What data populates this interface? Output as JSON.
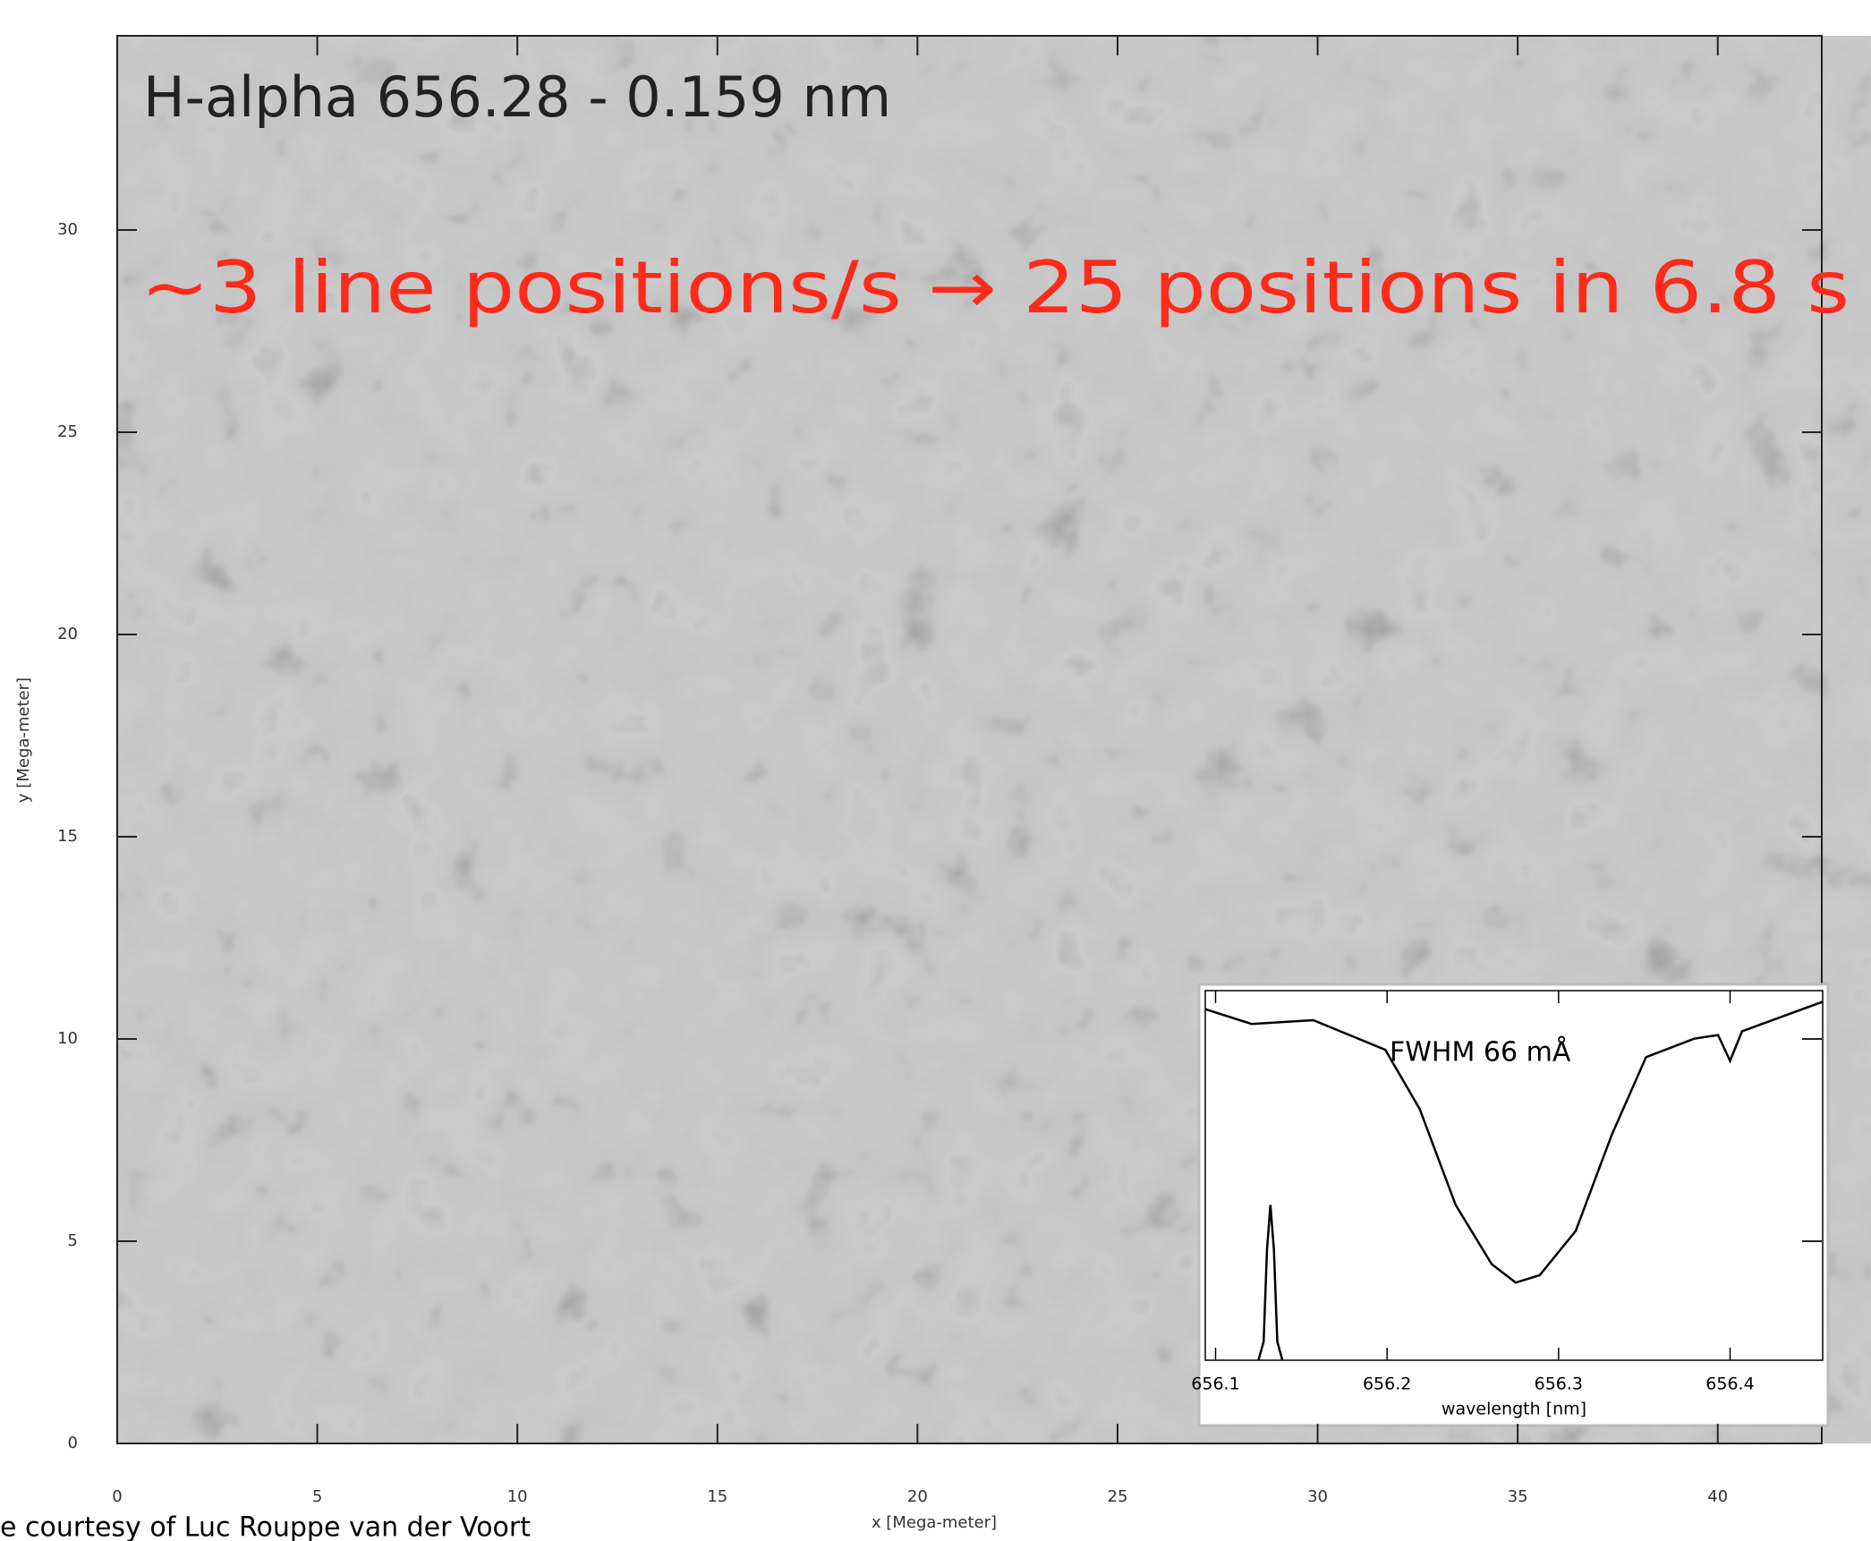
{
  "chart_data": [
    {
      "type": "image",
      "title": "H-alpha 656.28 - 0.159 nm",
      "annotation": "~3 line positions/s → 25 positions in 6.8 s",
      "x_label": "x [Mega-meter]",
      "y_label": "y [Mega-meter]",
      "xlim": [
        0,
        42.6
      ],
      "xticks": [
        0,
        5,
        10,
        15,
        20,
        25,
        30,
        35,
        40
      ],
      "ylim": [
        0,
        34.8
      ],
      "yticks": [
        0,
        5,
        10,
        15,
        20,
        25,
        30
      ]
    },
    {
      "type": "line",
      "annotation": "FWHM 66 mÅ",
      "x_label": "wavelength [nm]",
      "xlim": [
        656.094,
        656.454
      ],
      "xticks": [
        656.1,
        656.2,
        656.3,
        656.4
      ],
      "ylim": [
        0,
        1
      ],
      "series": [
        {
          "color": "#000000",
          "x": [
            656.094,
            656.121,
            656.157,
            656.199,
            656.219,
            656.24,
            656.261,
            656.275,
            656.289,
            656.31,
            656.331,
            656.351,
            656.379,
            656.393,
            656.4,
            656.407,
            656.454
          ],
          "values": [
            0.95,
            0.91,
            0.92,
            0.84,
            0.68,
            0.42,
            0.26,
            0.21,
            0.23,
            0.35,
            0.61,
            0.82,
            0.87,
            0.88,
            0.81,
            0.89,
            0.97
          ]
        },
        {
          "color": "#000000",
          "x": [
            656.125,
            656.128,
            656.13,
            656.132,
            656.134,
            656.136,
            656.139
          ],
          "values": [
            0,
            0.05,
            0.3,
            0.42,
            0.3,
            0.05,
            0
          ]
        }
      ]
    }
  ],
  "caption": "e courtesy of Luc Rouppe van der Voort"
}
